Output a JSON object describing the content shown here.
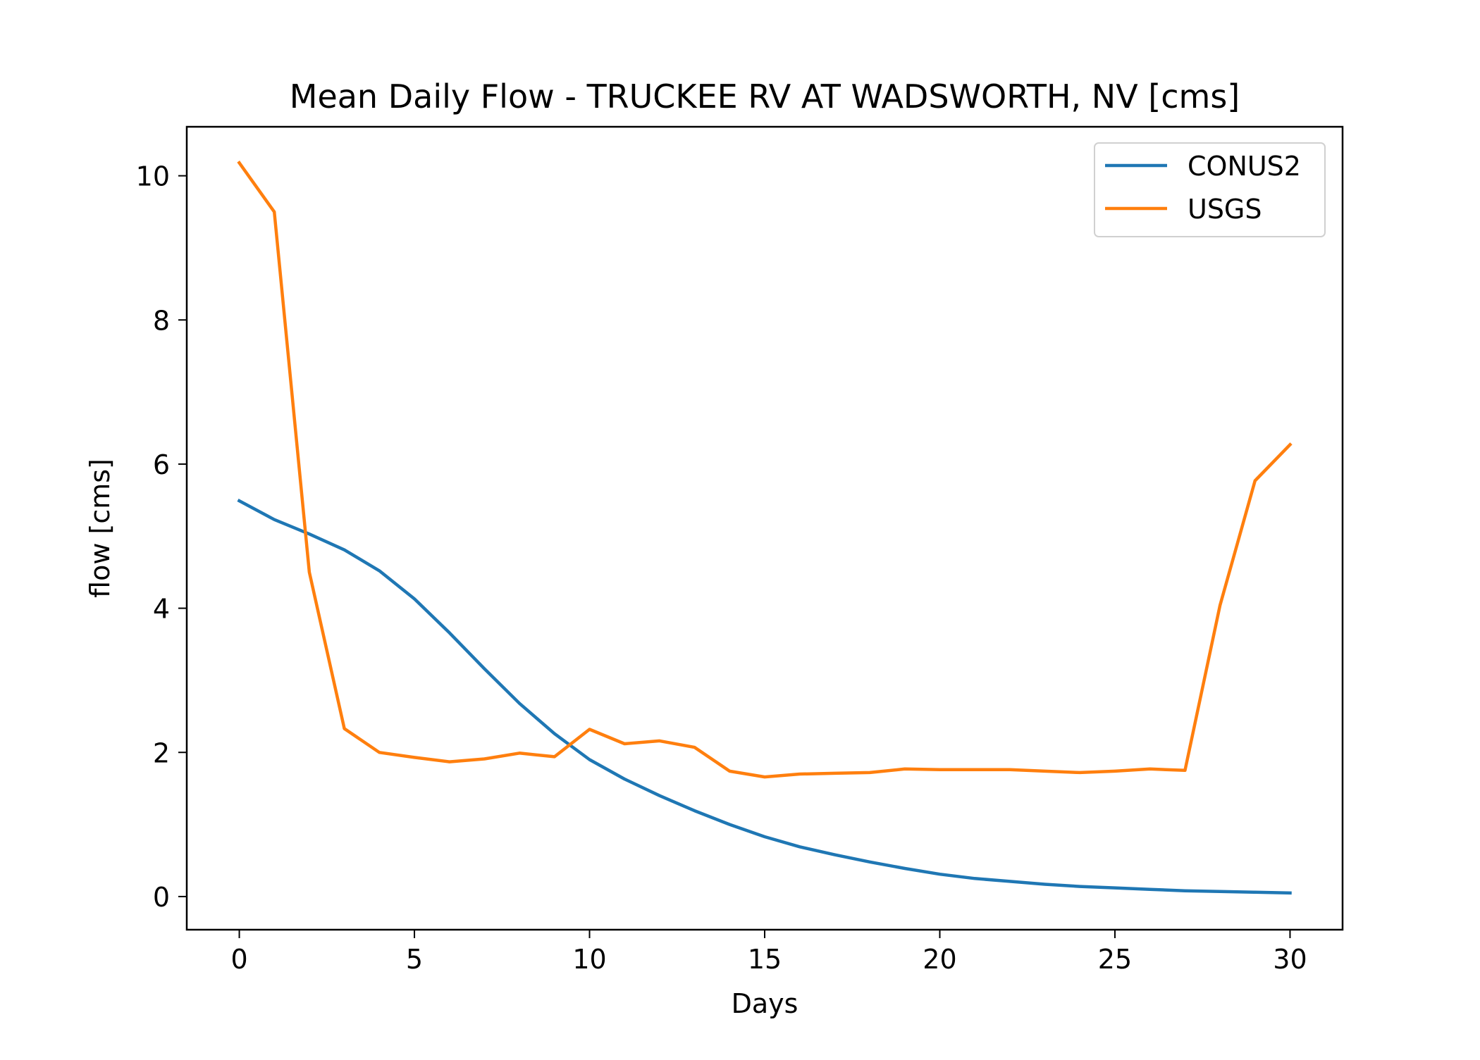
{
  "chart_data": {
    "type": "line",
    "title": "Mean Daily Flow - TRUCKEE RV AT WADSWORTH, NV [cms]",
    "xlabel": "Days",
    "ylabel": "flow [cms]",
    "xlim": [
      -1.5,
      31.5
    ],
    "ylim": [
      -0.46,
      10.68
    ],
    "xticks": [
      0,
      5,
      10,
      15,
      20,
      25,
      30
    ],
    "yticks": [
      0,
      2,
      4,
      6,
      8,
      10
    ],
    "grid": false,
    "legend_position": "upper right",
    "series": [
      {
        "name": "CONUS2",
        "color": "#1f77b4",
        "x": [
          0,
          1,
          2,
          3,
          4,
          5,
          6,
          7,
          8,
          9,
          10,
          11,
          12,
          13,
          14,
          15,
          16,
          17,
          18,
          19,
          20,
          21,
          22,
          23,
          24,
          25,
          26,
          27,
          28,
          29,
          30
        ],
        "y": [
          5.49,
          5.23,
          5.03,
          4.81,
          4.52,
          4.13,
          3.66,
          3.16,
          2.68,
          2.26,
          1.9,
          1.63,
          1.4,
          1.19,
          1.0,
          0.83,
          0.69,
          0.58,
          0.48,
          0.39,
          0.31,
          0.25,
          0.21,
          0.17,
          0.14,
          0.12,
          0.1,
          0.08,
          0.07,
          0.06,
          0.05
        ]
      },
      {
        "name": "USGS",
        "color": "#ff7f0e",
        "x": [
          0,
          1,
          2,
          3,
          4,
          5,
          6,
          7,
          8,
          9,
          10,
          11,
          12,
          13,
          14,
          15,
          16,
          17,
          18,
          19,
          20,
          21,
          22,
          23,
          24,
          25,
          26,
          27,
          28,
          29,
          30
        ],
        "y": [
          10.18,
          9.5,
          4.5,
          2.33,
          2.0,
          1.93,
          1.87,
          1.91,
          1.99,
          1.94,
          2.32,
          2.12,
          2.16,
          2.07,
          1.74,
          1.66,
          1.7,
          1.71,
          1.72,
          1.77,
          1.76,
          1.76,
          1.76,
          1.74,
          1.72,
          1.74,
          1.77,
          1.75,
          4.04,
          5.77,
          6.27
        ]
      }
    ]
  }
}
